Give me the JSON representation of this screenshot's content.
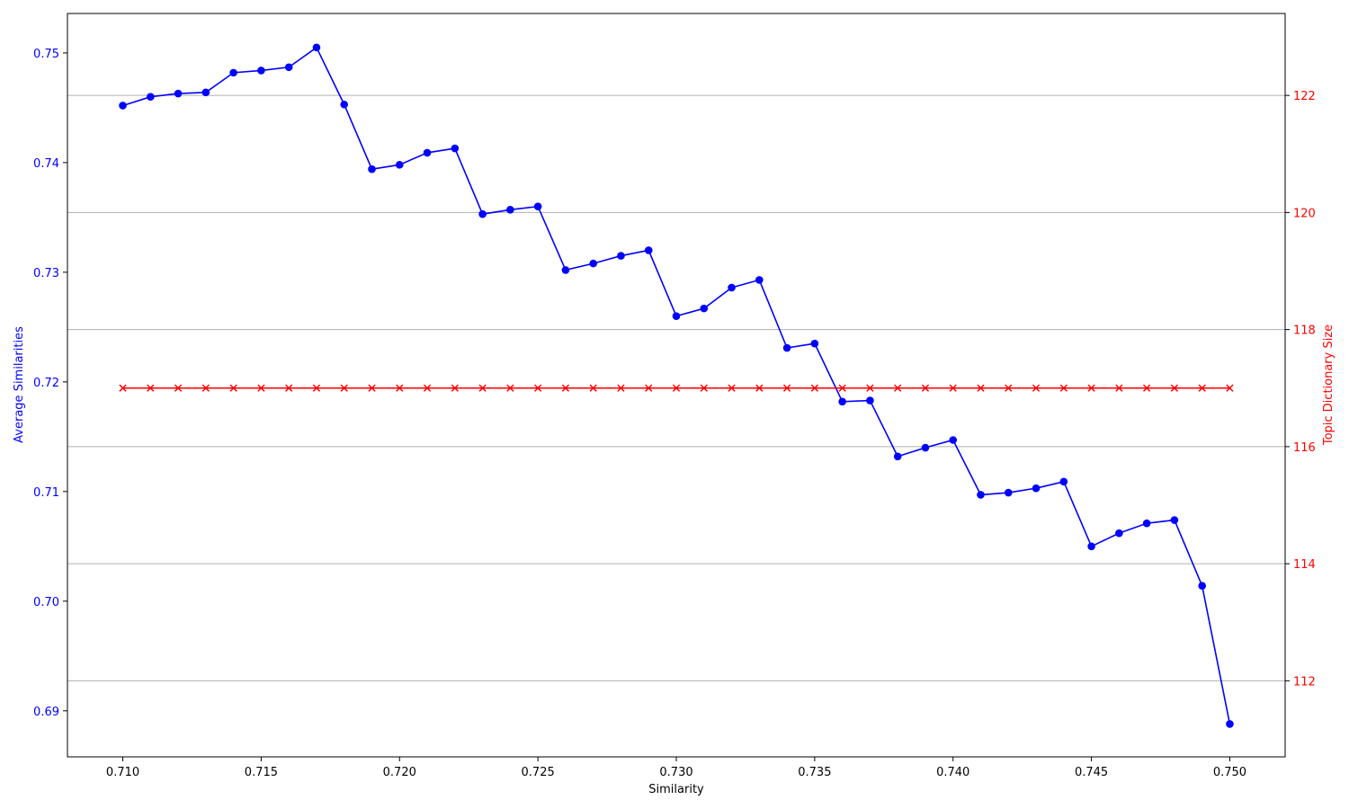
{
  "chart_data": {
    "type": "line",
    "title": "",
    "xlabel": "Similarity",
    "ylabel_left": "Average Similarities",
    "ylabel_right": "Topic Dictionary Size",
    "xlim": [
      0.708,
      0.752
    ],
    "ylim_left": [
      0.6858,
      0.7536
    ],
    "ylim_right": [
      110.7,
      123.4
    ],
    "x_ticks": [
      "0.710",
      "0.715",
      "0.720",
      "0.725",
      "0.730",
      "0.735",
      "0.740",
      "0.745",
      "0.750"
    ],
    "y_left_ticks": [
      "0.69",
      "0.70",
      "0.71",
      "0.72",
      "0.73",
      "0.74",
      "0.75"
    ],
    "y_right_ticks": [
      "112",
      "114",
      "116",
      "118",
      "120",
      "122"
    ],
    "grid": "right-axis horizontal",
    "colors": {
      "left": "#0000ff",
      "right": "#ff0000",
      "grid": "#b0b0b0"
    },
    "x": [
      0.71,
      0.711,
      0.712,
      0.713,
      0.714,
      0.715,
      0.716,
      0.717,
      0.718,
      0.719,
      0.72,
      0.721,
      0.722,
      0.723,
      0.724,
      0.725,
      0.726,
      0.727,
      0.728,
      0.729,
      0.73,
      0.731,
      0.732,
      0.733,
      0.734,
      0.735,
      0.736,
      0.737,
      0.738,
      0.739,
      0.74,
      0.741,
      0.742,
      0.743,
      0.744,
      0.745,
      0.746,
      0.747,
      0.748,
      0.749,
      0.75
    ],
    "series": [
      {
        "axis": "left",
        "marker": "circle",
        "color": "#0000ff",
        "values": [
          0.7452,
          0.746,
          0.7463,
          0.7464,
          0.7482,
          0.7484,
          0.7487,
          0.7505,
          0.7453,
          0.7394,
          0.7398,
          0.7409,
          0.7413,
          0.7353,
          0.7357,
          0.736,
          0.7302,
          0.7308,
          0.7315,
          0.732,
          0.726,
          0.7267,
          0.7286,
          0.7293,
          0.7231,
          0.7235,
          0.7182,
          0.7183,
          0.7132,
          0.714,
          0.7147,
          0.7097,
          0.7099,
          0.7103,
          0.7109,
          0.705,
          0.7062,
          0.7071,
          0.7074,
          0.7014,
          0.6888
        ]
      },
      {
        "axis": "right",
        "marker": "x",
        "color": "#ff0000",
        "values": [
          117,
          117,
          117,
          117,
          117,
          117,
          117,
          117,
          117,
          117,
          117,
          117,
          117,
          117,
          117,
          117,
          117,
          117,
          117,
          117,
          117,
          117,
          117,
          117,
          117,
          117,
          117,
          117,
          117,
          117,
          117,
          117,
          117,
          117,
          117,
          117,
          117,
          117,
          117,
          117,
          117
        ]
      }
    ]
  }
}
